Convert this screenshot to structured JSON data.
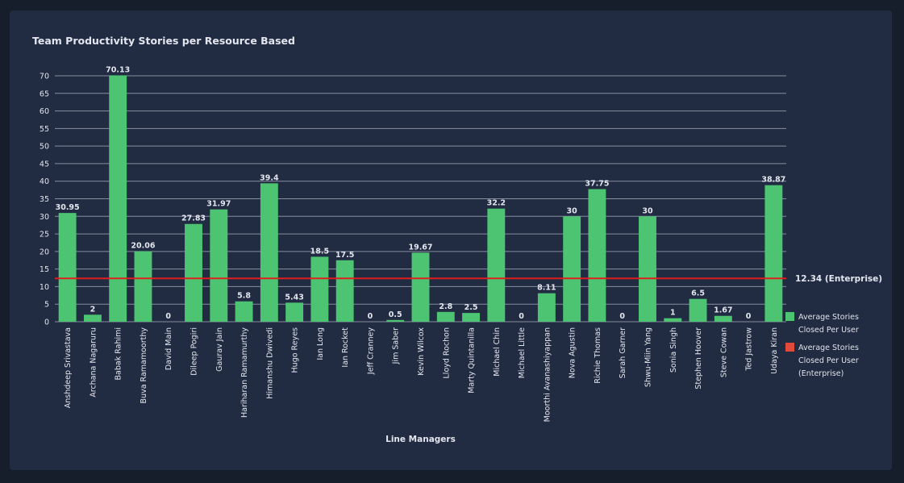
{
  "card": {
    "title": "Team Productivity Stories per Resource Based"
  },
  "legend": [
    {
      "label": "Average Stories Closed Per User",
      "color": "#4cc472"
    },
    {
      "label": "Average Stories Closed Per User (Enterprise)",
      "color": "#e04a3a"
    }
  ],
  "chart_data": {
    "type": "bar",
    "title": "Team Productivity Stories per Resource Based",
    "xlabel": "Line Managers",
    "ylabel": "",
    "ylim": [
      0,
      70
    ],
    "yticks": [
      0,
      5,
      10,
      15,
      20,
      25,
      30,
      35,
      40,
      45,
      50,
      55,
      60,
      65,
      70
    ],
    "grid": true,
    "legend_position": "right",
    "categories": [
      "Anshdeep Srivastava",
      "Archana Nagaruru",
      "Babak Rahimi",
      "Buva Ramamoorthy",
      "David Main",
      "Dileep Pogiri",
      "Gaurav Jain",
      "Hariharan Ramamurthy",
      "Himanshu Dwivedi",
      "Hugo Reyes",
      "Ian Long",
      "Ian Rocket",
      "Jeff Cranney",
      "Jim Saber",
      "Kevin Wilcox",
      "Lloyd Rochon",
      "Marty Quintanilla",
      "Michael Chin",
      "Michael Little",
      "Moorthi Avanashiyappan",
      "Nova Agustin",
      "Richie Thomas",
      "Sarah Garner",
      "Shwu-Miin Yang",
      "Sonia Singh",
      "Stephen Hoover",
      "Steve Cowan",
      "Ted Jastrow",
      "Udaya Kiran"
    ],
    "series": [
      {
        "name": "Average Stories Closed Per User",
        "color": "#4cc472",
        "values": [
          30.95,
          2,
          70.13,
          20.06,
          0,
          27.83,
          31.97,
          5.8,
          39.4,
          5.43,
          18.5,
          17.5,
          0,
          0.5,
          19.67,
          2.8,
          2.5,
          32.2,
          0,
          8.11,
          30,
          37.75,
          0,
          30,
          1,
          6.5,
          1.67,
          0,
          38.87
        ]
      }
    ],
    "reference_line": {
      "name": "Average Stories Closed Per User (Enterprise)",
      "value": 12.34,
      "label": "12.34 (Enterprise)",
      "color": "#e01e1e"
    },
    "colors": {
      "grid": "#aab0bf",
      "text": "#e3e6ee"
    }
  }
}
